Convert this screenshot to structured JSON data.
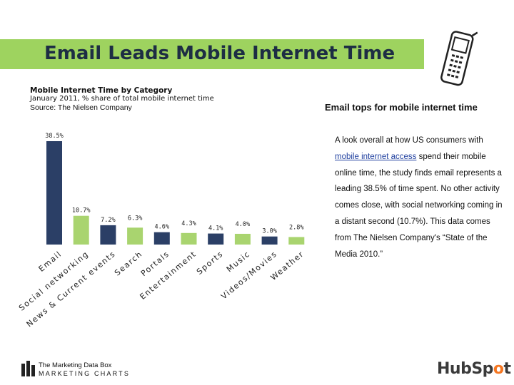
{
  "slide": {
    "title": "Email Leads Mobile Internet Time",
    "side_heading": "Email tops for mobile internet time",
    "side_body_parts": [
      "A look overall at how US consumers with ",
      "mobile internet access",
      " spend their mobile online time, the study finds email represents a leading 38.5% of time spent. No other activity comes close, with social networking coming in a distant second (10.7%). This data comes from The Nielsen Company's “State of the Media 2010.”"
    ],
    "logo_left_line1": "The Marketing Data Box",
    "logo_left_line2": "MARKETING CHARTS",
    "logo_right": "HubSpot",
    "icons": [
      "mobile-phone-icon",
      "marketing-charts-bars-icon",
      "hubspot-logo-icon"
    ]
  },
  "chart_data": {
    "type": "bar",
    "title": "Mobile Internet Time by Category",
    "subtitle": "January 2011, % share of total mobile internet time",
    "source": "Source: The Nielsen Company",
    "categories": [
      "Email",
      "Social networking",
      "News & Current events",
      "Search",
      "Portals",
      "Entertainment",
      "Sports",
      "Music",
      "Videos/Movies",
      "Weather"
    ],
    "values": [
      38.5,
      10.7,
      7.2,
      6.3,
      4.6,
      4.3,
      4.1,
      4.0,
      3.0,
      2.8
    ],
    "value_labels": [
      "38.5%",
      "10.7%",
      "7.2%",
      "6.3%",
      "4.6%",
      "4.3%",
      "4.1%",
      "4.0%",
      "3.0%",
      "2.8%"
    ],
    "bar_colors": [
      "#2b3f66",
      "#a9d46f",
      "#2b3f66",
      "#a9d46f",
      "#2b3f66",
      "#a9d46f",
      "#2b3f66",
      "#a9d46f",
      "#2b3f66",
      "#a9d46f"
    ],
    "xlabel": "",
    "ylabel": "",
    "ylim": [
      0,
      38.5
    ],
    "grid": false,
    "legend": "none"
  },
  "colors": {
    "title_bar": "#9ed35f",
    "title_text": "#1d2d44",
    "bar_dark": "#2b3f66",
    "bar_light": "#a9d46f",
    "link": "#1f3f9f",
    "hubspot_accent": "#f57722"
  }
}
